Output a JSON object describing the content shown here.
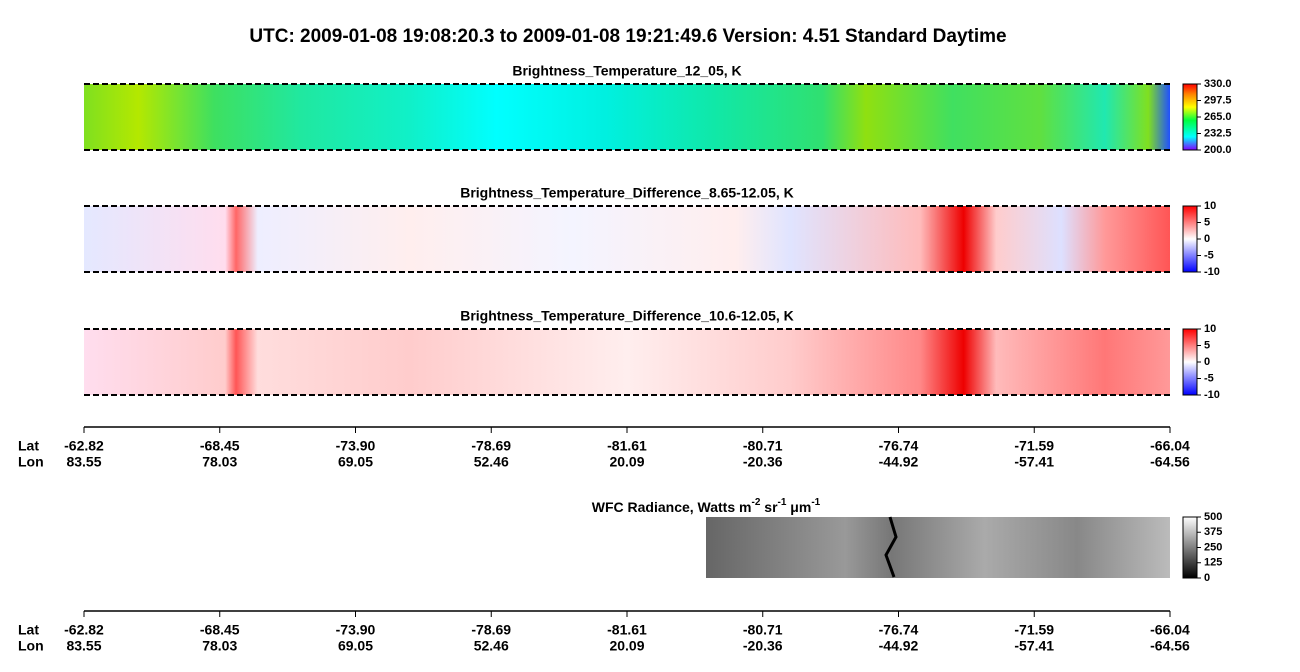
{
  "header": {
    "title": "UTC:  2009-01-08   19:08:20.3  to  2009-01-08   19:21:49.6    Version: 4.51  Standard Daytime"
  },
  "panels": [
    {
      "title": "Brightness_Temperature_12_05, K",
      "colorbar": {
        "lim": [
          200,
          330
        ],
        "ticks": [
          {
            "value": 330,
            "label": "330.0"
          },
          297.5,
          {
            "value": 265,
            "label": "265.0"
          },
          232.5,
          {
            "value": 200,
            "label": "200.0"
          }
        ]
      }
    },
    {
      "title": "Brightness_Temperature_Difference_8.65-12.05, K",
      "colorbar": {
        "lim": [
          -10,
          10
        ],
        "ticks": [
          10,
          5,
          0,
          -5,
          -10
        ]
      }
    },
    {
      "title": "Brightness_Temperature_Difference_10.6-12.05, K",
      "colorbar": {
        "lim": [
          -10,
          10
        ],
        "ticks": [
          10,
          5,
          0,
          -5,
          -10
        ]
      }
    }
  ],
  "wfc": {
    "title_parts": [
      "WFC Radiance, Watts m",
      "-2",
      " sr",
      "-1",
      " μm",
      "-1"
    ],
    "colorbar": {
      "lim": [
        0,
        500
      ],
      "ticks": [
        500,
        375,
        250,
        125,
        0
      ]
    }
  },
  "axis": {
    "lat_label": "Lat",
    "lon_label": "Lon",
    "lat": [
      -62.82,
      -68.45,
      {
        "value": -73.9,
        "label": "-73.90"
      },
      -78.69,
      -81.61,
      -80.71,
      -76.74,
      -71.59,
      -66.04
    ],
    "lon": [
      83.55,
      78.03,
      69.05,
      52.46,
      20.09,
      -20.36,
      -44.92,
      -57.41,
      -64.56
    ]
  }
}
